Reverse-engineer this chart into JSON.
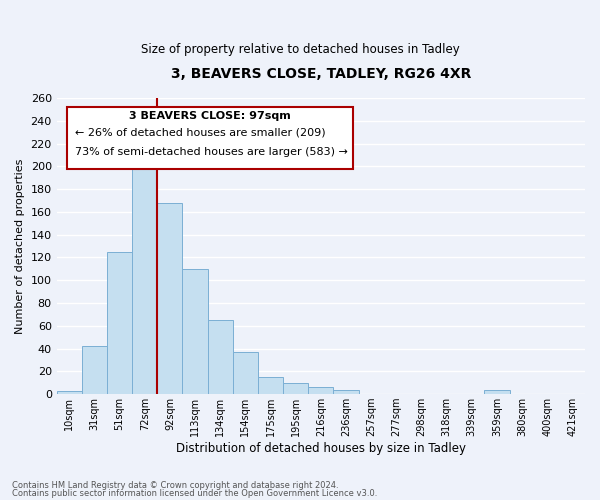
{
  "title": "3, BEAVERS CLOSE, TADLEY, RG26 4XR",
  "subtitle": "Size of property relative to detached houses in Tadley",
  "xlabel": "Distribution of detached houses by size in Tadley",
  "ylabel": "Number of detached properties",
  "bar_labels": [
    "10sqm",
    "31sqm",
    "51sqm",
    "72sqm",
    "92sqm",
    "113sqm",
    "134sqm",
    "154sqm",
    "175sqm",
    "195sqm",
    "216sqm",
    "236sqm",
    "257sqm",
    "277sqm",
    "298sqm",
    "318sqm",
    "339sqm",
    "359sqm",
    "380sqm",
    "400sqm",
    "421sqm"
  ],
  "bar_values": [
    3,
    42,
    125,
    204,
    168,
    110,
    65,
    37,
    15,
    10,
    6,
    4,
    0,
    0,
    0,
    0,
    0,
    4,
    0,
    0,
    0
  ],
  "bar_color": "#c5dff0",
  "bar_edge_color": "#7bafd4",
  "vline_x": 4,
  "vline_color": "#aa0000",
  "ylim": [
    0,
    260
  ],
  "yticks": [
    0,
    20,
    40,
    60,
    80,
    100,
    120,
    140,
    160,
    180,
    200,
    220,
    240,
    260
  ],
  "annotation_title": "3 BEAVERS CLOSE: 97sqm",
  "annotation_line1": "← 26% of detached houses are smaller (209)",
  "annotation_line2": "73% of semi-detached houses are larger (583) →",
  "annotation_box_color": "#ffffff",
  "annotation_box_edge_color": "#aa0000",
  "footer_line1": "Contains HM Land Registry data © Crown copyright and database right 2024.",
  "footer_line2": "Contains public sector information licensed under the Open Government Licence v3.0.",
  "background_color": "#eef2fa",
  "grid_color": "#ffffff",
  "plot_bg_color": "#eef2fa"
}
